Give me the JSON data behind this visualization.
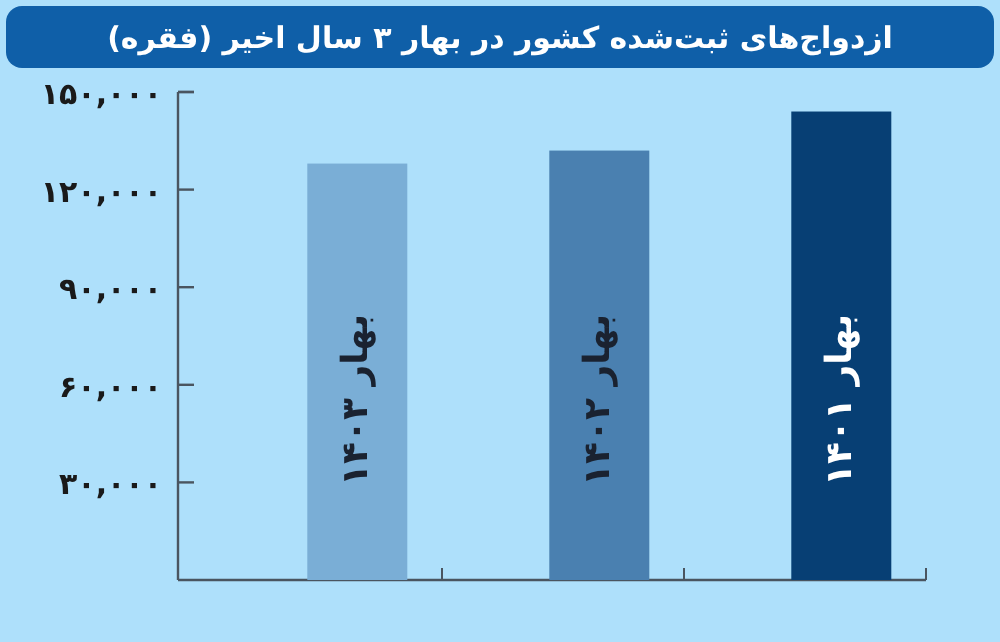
{
  "chart_data": {
    "type": "bar",
    "title": "ازدواج‌های ثبت‌شده کشور در بهار ۳ سال اخیر (فقره)",
    "categories": [
      "بهار ۱۴۰۳",
      "بهار ۱۴۰۲",
      "بهار ۱۴۰۱"
    ],
    "values": [
      128000,
      132000,
      144000
    ],
    "colors": [
      "#7aaed6",
      "#4a80b0",
      "#073f74"
    ],
    "ylim": [
      0,
      150000
    ],
    "yticks": [
      {
        "value": 30000,
        "label": "۳۰,۰۰۰"
      },
      {
        "value": 60000,
        "label": "۶۰,۰۰۰"
      },
      {
        "value": 90000,
        "label": "۹۰,۰۰۰"
      },
      {
        "value": 120000,
        "label": "۱۲۰,۰۰۰"
      },
      {
        "value": 150000,
        "label": "۱۵۰,۰۰۰"
      }
    ],
    "grid": false
  }
}
